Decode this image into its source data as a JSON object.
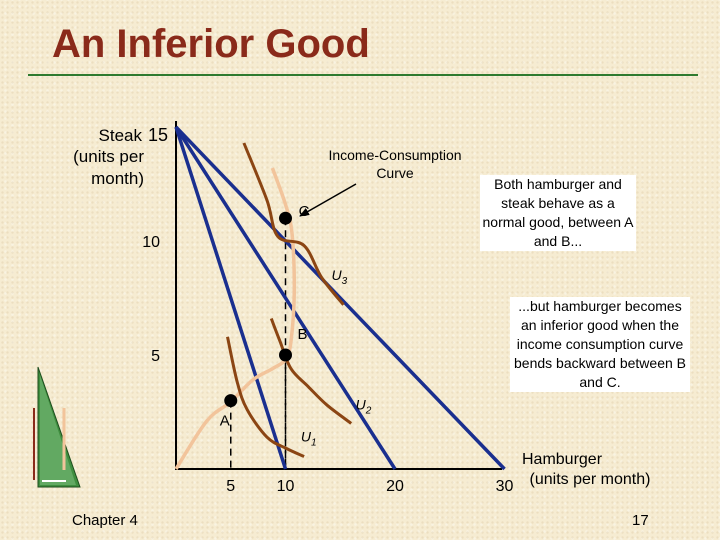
{
  "slide": {
    "title": "An Inferior Good",
    "footer_left": "Chapter 4",
    "page_number": "17"
  },
  "annotations": {
    "normal_good_note": "Both hamburger and steak behave as a normal good, between A and B...",
    "inferior_good_note": "...but hamburger becomes an inferior good when the income consumption curve bends backward between B and C."
  },
  "colors": {
    "title": "#8a2a1a",
    "title_rule": "#2f7a2f",
    "budget_line": "#1a2f8f",
    "indifference_curve": "#8b4513",
    "icc_curve": "#f2c49b",
    "background": "#f6ecd2"
  },
  "chart_data": {
    "type": "line",
    "title": "",
    "ylabel": [
      "Steak",
      "(units per",
      "month)"
    ],
    "xlabel": [
      "Hamburger",
      "(units per month)"
    ],
    "xlim": [
      0,
      30
    ],
    "ylim": [
      0,
      15
    ],
    "x_ticks": [
      {
        "value": 5,
        "label": "5"
      },
      {
        "value": 10,
        "label": "10"
      },
      {
        "value": 20,
        "label": "20"
      },
      {
        "value": 30,
        "label": "30"
      }
    ],
    "y_ticks": [
      {
        "value": 5,
        "label": "5"
      },
      {
        "value": 10,
        "label": "10"
      },
      {
        "value": 15,
        "label": "15"
      }
    ],
    "budget_lines": [
      {
        "x_intercept": 10,
        "y_intercept": 15
      },
      {
        "x_intercept": 20,
        "y_intercept": 15
      },
      {
        "x_intercept": 30,
        "y_intercept": 15
      }
    ],
    "indifference_curves": [
      {
        "name": "U1",
        "points": [
          [
            4.7,
            5.8
          ],
          [
            5.6,
            3.8
          ],
          [
            6.5,
            2.6
          ],
          [
            8.3,
            1.4
          ],
          [
            10,
            0.92
          ],
          [
            11.7,
            0.55
          ]
        ],
        "label_at": [
          11.4,
          1.2
        ]
      },
      {
        "name": "U2",
        "points": [
          [
            8.7,
            6.6
          ],
          [
            9.5,
            5.6
          ],
          [
            10.5,
            4.4
          ],
          [
            12.1,
            3.6
          ],
          [
            13.8,
            2.8
          ],
          [
            16,
            2.0
          ]
        ],
        "label_at": [
          16.4,
          2.6
        ]
      },
      {
        "name": "U3",
        "points": [
          [
            6.2,
            14.3
          ],
          [
            8.3,
            11.8
          ],
          [
            9.3,
            10.2
          ],
          [
            11.7,
            9.8
          ],
          [
            13.3,
            8.4
          ],
          [
            15.3,
            7.2
          ]
        ],
        "label_at": [
          14.2,
          8.3
        ]
      }
    ],
    "income_consumption_curve": {
      "label": [
        "Income-Consumption",
        "Curve"
      ],
      "points": [
        [
          0,
          0
        ],
        [
          2.8,
          2.1
        ],
        [
          5,
          2.95
        ],
        [
          7,
          3.9
        ],
        [
          8.8,
          4.4
        ],
        [
          10,
          4.8
        ],
        [
          10.5,
          5.6
        ],
        [
          10.8,
          7.8
        ],
        [
          10.6,
          10.3
        ],
        [
          10,
          11.6
        ],
        [
          8.8,
          13.2
        ]
      ]
    },
    "points": [
      {
        "name": "A",
        "x": 5,
        "y": 3,
        "label_at": [
          4.0,
          1.9
        ]
      },
      {
        "name": "B",
        "x": 10,
        "y": 5,
        "label_at": [
          11.1,
          5.7
        ]
      },
      {
        "name": "C",
        "x": 10,
        "y": 11,
        "label_at": [
          11.2,
          11.1
        ]
      }
    ]
  }
}
